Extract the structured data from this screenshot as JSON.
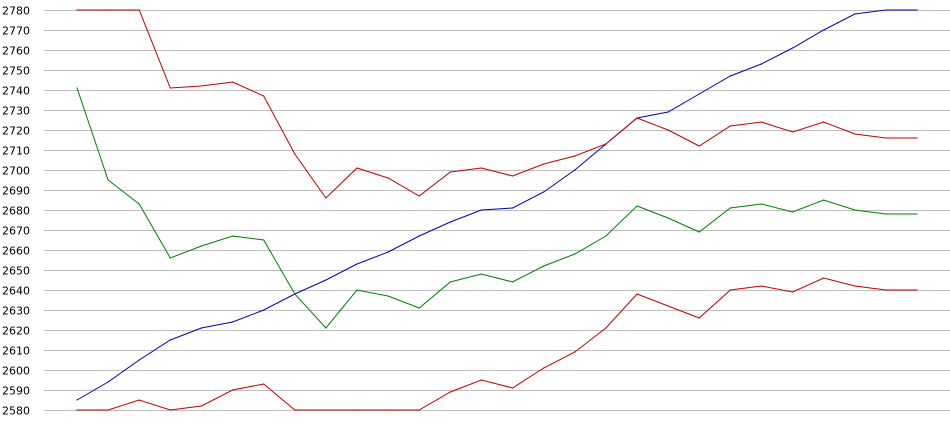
{
  "chart_data": {
    "type": "line",
    "title": "",
    "xlabel": "",
    "ylabel": "",
    "ylim": [
      2580,
      2780
    ],
    "yticks": [
      2580,
      2590,
      2600,
      2610,
      2620,
      2630,
      2640,
      2650,
      2660,
      2670,
      2680,
      2690,
      2700,
      2710,
      2720,
      2730,
      2740,
      2750,
      2760,
      2770,
      2780
    ],
    "grid": true,
    "x": [
      1,
      2,
      3,
      4,
      5,
      6,
      7,
      8,
      9,
      10,
      11,
      12,
      13,
      14,
      15,
      16,
      17,
      18,
      19,
      20,
      21,
      22,
      23,
      24,
      25,
      26,
      27,
      28
    ],
    "series": [
      {
        "color": "#0000c0",
        "values": [
          2585,
          2594,
          2605,
          2615,
          2621,
          2624,
          2630,
          2638,
          2645,
          2653,
          2659,
          2667,
          2674,
          2680,
          2681,
          2689,
          2700,
          2713,
          2726,
          2729,
          2738,
          2747,
          2753,
          2761,
          2770,
          2778,
          2780,
          2780
        ]
      },
      {
        "color": "#c00000",
        "values": [
          2780,
          2780,
          2780,
          2741,
          2742,
          2744,
          2737,
          2708,
          2686,
          2701,
          2696,
          2687,
          2699,
          2701,
          2697,
          2703,
          2707,
          2713,
          2726,
          2720,
          2712,
          2722,
          2724,
          2719,
          2724,
          2718,
          2716,
          2716
        ]
      },
      {
        "color": "#008000",
        "values": [
          2741,
          2695,
          2683,
          2656,
          2662,
          2667,
          2665,
          2638,
          2621,
          2640,
          2637,
          2631,
          2644,
          2648,
          2644,
          2652,
          2658,
          2667,
          2682,
          2676,
          2669,
          2681,
          2683,
          2679,
          2685,
          2680,
          2678,
          2678
        ]
      },
      {
        "color": "#c00000",
        "values": [
          2580,
          2580,
          2585,
          2580,
          2582,
          2590,
          2593,
          2580,
          2580,
          2580,
          2580,
          2580,
          2589,
          2595,
          2591,
          2601,
          2609,
          2621,
          2638,
          2632,
          2626,
          2640,
          2642,
          2639,
          2646,
          2642,
          2640,
          2640
        ]
      }
    ]
  }
}
